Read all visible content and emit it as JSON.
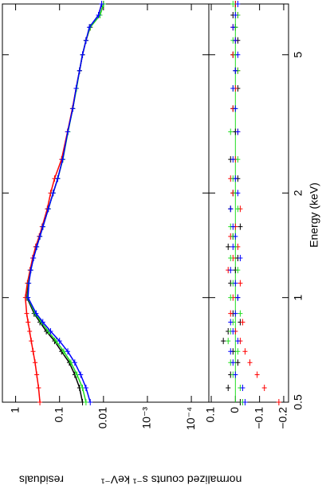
{
  "chart_data": [
    {
      "type": "line",
      "ylabel": "normalized counts s⁻¹ keV⁻¹",
      "xlog": true,
      "ylog": true,
      "x": [
        0.5,
        0.55,
        0.6,
        0.65,
        0.7,
        0.75,
        0.8,
        0.85,
        0.9,
        1,
        1.1,
        1.2,
        1.3,
        1.4,
        1.5,
        1.6,
        1.8,
        2,
        2.2,
        2.5,
        3,
        3.5,
        4,
        4.5,
        5,
        5.5,
        6,
        6.5,
        7
      ],
      "xlim": [
        0.5,
        7
      ],
      "ylim": [
        4e-05,
        2
      ],
      "yticks": [
        1,
        0.1,
        0.01,
        {
          "value": 0.001,
          "label": "10⁻³"
        },
        {
          "value": 0.0001,
          "label": "10⁻⁴"
        }
      ],
      "series": [
        {
          "color": "#000000",
          "values": [
            0.03,
            0.035,
            0.045,
            0.06,
            0.09,
            0.13,
            0.2,
            0.28,
            0.38,
            0.55,
            0.52,
            0.46,
            0.4,
            0.34,
            0.28,
            0.24,
            0.18,
            0.14,
            0.11,
            0.085,
            0.065,
            0.05,
            0.042,
            0.035,
            0.03,
            0.025,
            0.02,
            0.012,
            0.01
          ]
        },
        {
          "color": "#ff0000",
          "values": [
            0.28,
            0.3,
            0.33,
            0.36,
            0.4,
            0.44,
            0.48,
            0.52,
            0.56,
            0.6,
            0.54,
            0.47,
            0.41,
            0.35,
            0.29,
            0.25,
            0.19,
            0.16,
            0.13,
            0.09,
            0.066,
            0.051,
            0.042,
            0.035,
            0.03,
            0.025,
            0.02,
            0.013,
            0.011
          ]
        },
        {
          "color": "#22dd22",
          "values": [
            0.025,
            0.03,
            0.04,
            0.055,
            0.08,
            0.12,
            0.18,
            0.26,
            0.36,
            0.53,
            0.51,
            0.45,
            0.39,
            0.33,
            0.28,
            0.24,
            0.18,
            0.14,
            0.11,
            0.084,
            0.064,
            0.05,
            0.041,
            0.035,
            0.03,
            0.025,
            0.02,
            0.012,
            0.01
          ]
        },
        {
          "color": "#0000ff",
          "values": [
            0.02,
            0.025,
            0.033,
            0.045,
            0.065,
            0.1,
            0.16,
            0.24,
            0.34,
            0.52,
            0.5,
            0.45,
            0.39,
            0.33,
            0.28,
            0.24,
            0.18,
            0.14,
            0.11,
            0.085,
            0.065,
            0.05,
            0.042,
            0.035,
            0.03,
            0.025,
            0.021,
            0.013,
            0.011
          ]
        }
      ]
    },
    {
      "type": "scatter",
      "xlabel": "Energy (keV)",
      "ylabel": "residuals",
      "xlog": true,
      "x": [
        0.5,
        0.55,
        0.6,
        0.65,
        0.7,
        0.75,
        0.8,
        0.85,
        0.9,
        1,
        1.1,
        1.2,
        1.3,
        1.4,
        1.5,
        1.6,
        1.8,
        2,
        2.2,
        2.5,
        3,
        3.5,
        4,
        4.5,
        5,
        5.5,
        6,
        6.5,
        7
      ],
      "xlim": [
        0.5,
        7
      ],
      "xticks": [
        0.5,
        1,
        2,
        5
      ],
      "ylim": [
        -0.22,
        0.11
      ],
      "yticks": [
        0.1,
        0,
        {
          "value": -0.1,
          "label": "−0.1"
        },
        {
          "value": -0.2,
          "label": "−0.2"
        }
      ],
      "series": [
        {
          "color": "#000000",
          "values": [
            -0.02,
            0.03,
            0.02,
            -0.01,
            0.01,
            0.05,
            0.03,
            -0.02,
            0.01,
            -0.01,
            0.02,
            0,
            -0.01,
            0.03,
            0.01,
            -0.02,
            0.02,
            0.01,
            -0.01,
            0.02,
            0,
            0.01,
            -0.01,
            0,
            0.01,
            -0.01,
            0,
            0.01,
            0
          ]
        },
        {
          "color": "#ff0000",
          "values": [
            -0.18,
            -0.12,
            -0.09,
            -0.06,
            -0.04,
            -0.02,
            0,
            -0.03,
            0.02,
            0.01,
            -0.02,
            0.03,
            0.01,
            -0.01,
            0.02,
            0,
            -0.02,
            0.01,
            0.02,
            0,
            -0.01,
            0.01,
            0,
            -0.01,
            0.01,
            0,
            0.01,
            -0.01,
            0
          ]
        },
        {
          "color": "#22dd22",
          "values": [
            -0.03,
            -0.02,
            0.01,
            0.02,
            -0.01,
            0.03,
            0.02,
            0.01,
            -0.02,
            0.02,
            0.01,
            -0.01,
            0.02,
            0,
            0.01,
            0.02,
            -0.01,
            0,
            0.01,
            -0.01,
            0.02,
            0,
            0.01,
            -0.01,
            0,
            0.01,
            0,
            -0.01,
            0.01
          ]
        },
        {
          "color": "#0000ff",
          "values": [
            -0.04,
            -0.03,
            0,
            0.01,
            0.02,
            -0.01,
            0.01,
            0.02,
            0,
            -0.01,
            0,
            0.02,
            -0.02,
            0.01,
            0,
            0.01,
            0.02,
            -0.01,
            0,
            0.01,
            -0.01,
            0,
            0.01,
            0,
            -0.01,
            0,
            0.01,
            0,
            -0.01
          ]
        }
      ]
    }
  ]
}
